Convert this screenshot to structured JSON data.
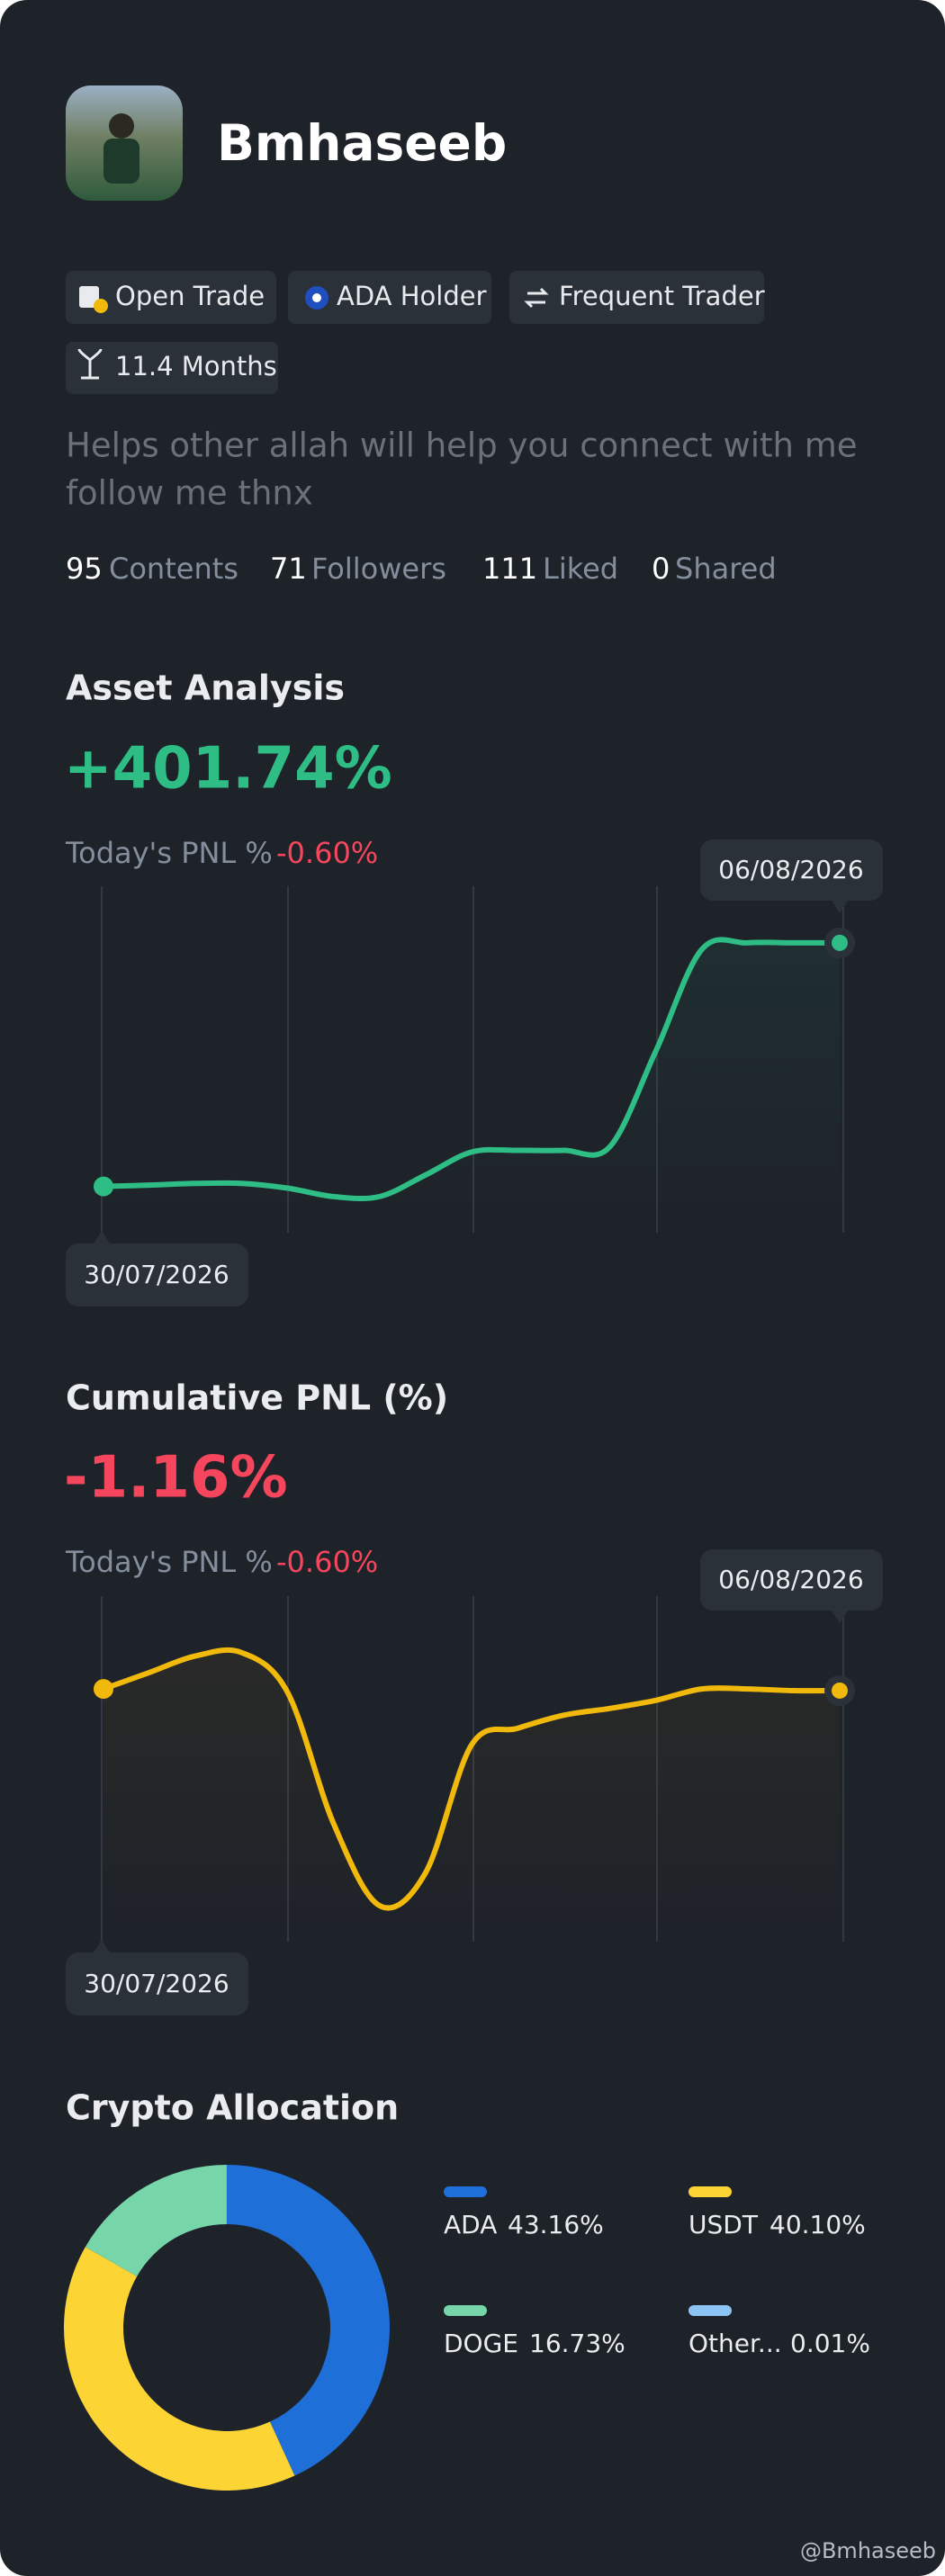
{
  "profile": {
    "name": "Bmhaseeb",
    "badges": [
      "Open Trade",
      "ADA Holder",
      "Frequent Trader",
      "11.4 Months"
    ],
    "bio_lines": [
      "Helps other allah will help you connect with me",
      "follow me thnx"
    ],
    "stats": [
      {
        "value": 95,
        "label": "Contents"
      },
      {
        "value": 71,
        "label": "Followers"
      },
      {
        "value": 111,
        "label": "Liked"
      },
      {
        "value": 0,
        "label": "Shared"
      }
    ]
  },
  "asset_analysis": {
    "title": "Asset Analysis",
    "change": "+401.74%",
    "today_label": "Today's PNL %",
    "today_value": "-0.60%",
    "chart": {
      "type": "line",
      "color": "#2ebd85",
      "categories": [
        "30/07/2026",
        null,
        null,
        null,
        null,
        null,
        null,
        null,
        null,
        null,
        null,
        null,
        null,
        null,
        null,
        null,
        "06/08/2026"
      ],
      "values": [
        13.7,
        14.1,
        14.6,
        14.6,
        13.2,
        10.7,
        10.7,
        17.1,
        23.9,
        24.4,
        24.4,
        25.4,
        53.7,
        83.9,
        85.9,
        85.9,
        85.9
      ],
      "ylim": [
        0,
        100
      ]
    }
  },
  "cumulative_pnl": {
    "title": "Cumulative PNL (%)",
    "change": "-1.16%",
    "today_label": "Today's PNL %",
    "today_value": "-0.60%",
    "chart": {
      "type": "line",
      "color": "#f0b90b",
      "categories": [
        "30/07/2026",
        null,
        null,
        null,
        null,
        null,
        null,
        null,
        null,
        null,
        null,
        null,
        null,
        null,
        null,
        null,
        "06/08/2026"
      ],
      "values": [
        75.1,
        80.0,
        84.9,
        85.9,
        74.1,
        35.1,
        10.7,
        20.5,
        58.5,
        63.4,
        67.3,
        69.3,
        71.7,
        75.1,
        75.1,
        74.6,
        74.6
      ],
      "ylim": [
        0,
        100
      ]
    }
  },
  "allocation": {
    "title": "Crypto Allocation",
    "type": "pie",
    "categories": [
      "ADA",
      "USDT",
      "DOGE",
      "Other..."
    ],
    "values": [
      43.16,
      40.1,
      16.73,
      0.01
    ],
    "value_labels": [
      "43.16%",
      "40.10%",
      "16.73%",
      "0.01%"
    ],
    "colors": [
      "#1f6fd8",
      "#fcd535",
      "#76d6a9",
      "#8dc4f5"
    ]
  },
  "footer": {
    "watermark": "@Bmhaseeb"
  }
}
